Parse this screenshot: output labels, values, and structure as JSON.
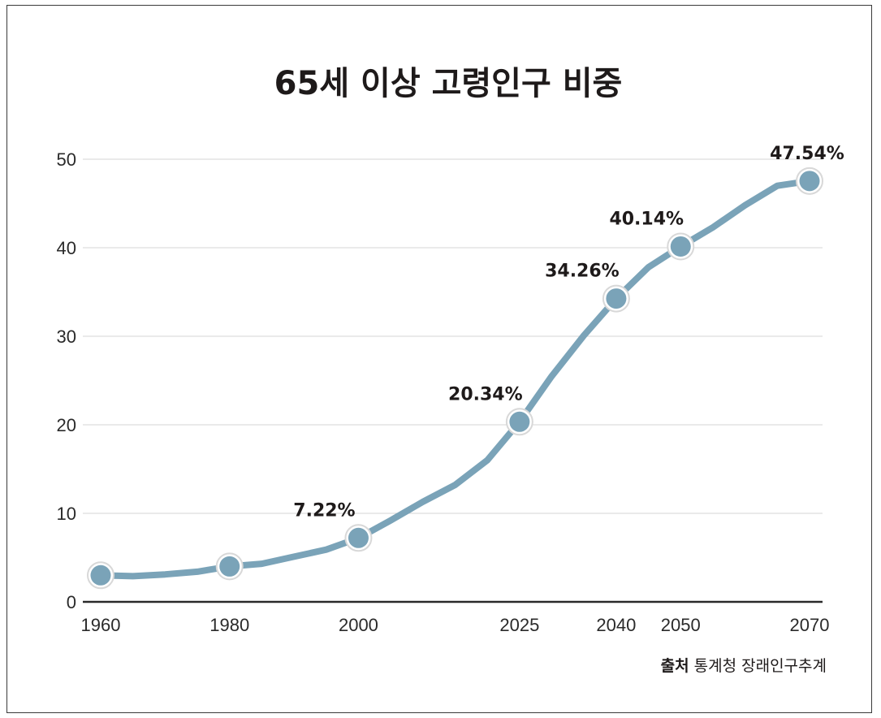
{
  "chart_data": {
    "type": "line",
    "title": "65세 이상 고령인구 비중",
    "xlabel": "",
    "ylabel": "",
    "ylim": [
      0,
      50
    ],
    "yticks": [
      0,
      10,
      20,
      30,
      40,
      50
    ],
    "xticks": [
      "1960",
      "1980",
      "2000",
      "2025",
      "2040",
      "2050",
      "2070"
    ],
    "grid": true,
    "line_color": "#7aa3b8",
    "series": [
      {
        "x": [
          1960,
          1965,
          1970,
          1975,
          1980,
          1985,
          1990,
          1995,
          2000,
          2005,
          2010,
          2015,
          2020,
          2025,
          2030,
          2035,
          2040,
          2045,
          2050,
          2055,
          2060,
          2065,
          2070
        ],
        "values": [
          3.0,
          2.9,
          3.1,
          3.4,
          4.0,
          4.3,
          5.1,
          5.9,
          7.2,
          9.2,
          11.3,
          13.2,
          16.0,
          20.34,
          25.5,
          30.1,
          34.26,
          37.8,
          40.14,
          42.3,
          44.8,
          47.0,
          47.54
        ]
      }
    ],
    "markers": [
      {
        "x": 1960,
        "y": 3.0,
        "label": ""
      },
      {
        "x": 1980,
        "y": 4.0,
        "label": ""
      },
      {
        "x": 2000,
        "y": 7.22,
        "label": "7.22%"
      },
      {
        "x": 2025,
        "y": 20.34,
        "label": "20.34%"
      },
      {
        "x": 2040,
        "y": 34.26,
        "label": "34.26%"
      },
      {
        "x": 2050,
        "y": 40.14,
        "label": "40.14%"
      },
      {
        "x": 2070,
        "y": 47.54,
        "label": "47.54%"
      }
    ]
  },
  "source": {
    "label": "출처",
    "text": "통계청 장래인구추계"
  }
}
